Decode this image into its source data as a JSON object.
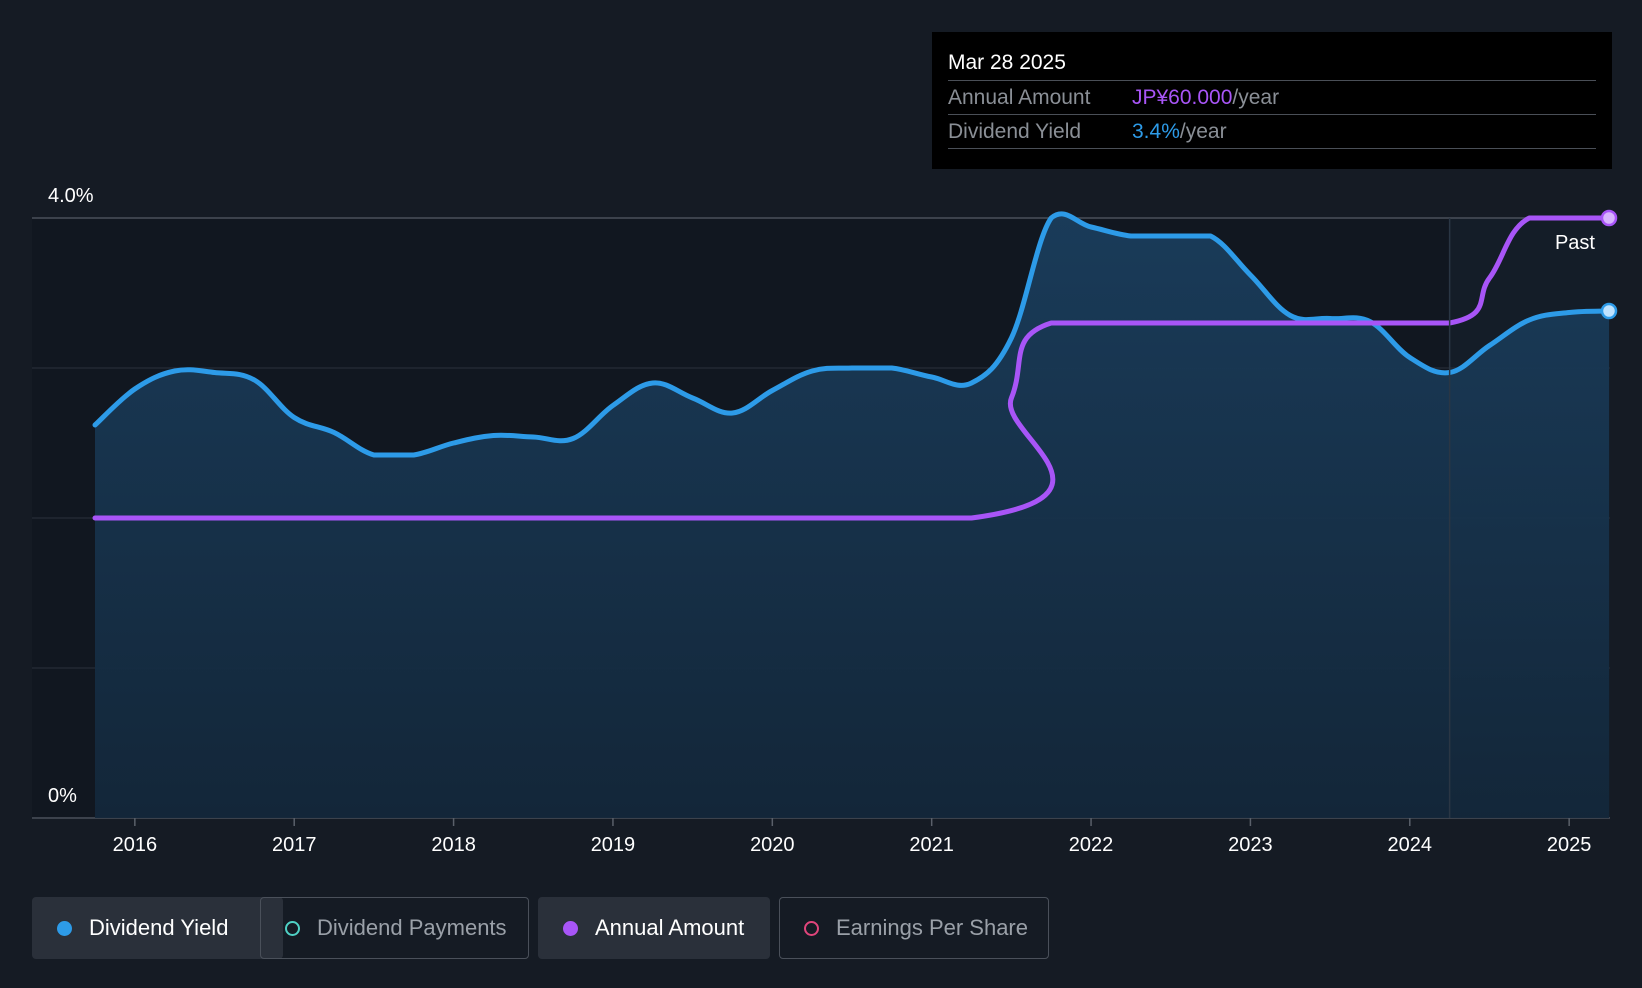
{
  "tooltip": {
    "date": "Mar 28 2025",
    "rows": [
      {
        "label": "Annual Amount",
        "value": "JP¥60.000",
        "unit": "/year",
        "color": "#a855f7"
      },
      {
        "label": "Dividend Yield",
        "value": "3.4%",
        "unit": "/year",
        "color": "#2d9be8"
      }
    ]
  },
  "legend": [
    {
      "label": "Dividend Yield",
      "active": true,
      "color": "#2d9be8",
      "filled": true
    },
    {
      "label": "Dividend Payments",
      "active": false,
      "color": "#4fd1c5",
      "filled": false
    },
    {
      "label": "Annual Amount",
      "active": true,
      "color": "#a855f7",
      "filled": true
    },
    {
      "label": "Earnings Per Share",
      "active": false,
      "color": "#e0457b",
      "filled": false
    }
  ],
  "chart_data": {
    "type": "line",
    "y_axis_labels": [
      "4.0%",
      "0%"
    ],
    "ylim": [
      0,
      4.0
    ],
    "x_ticks": [
      "2016",
      "2017",
      "2018",
      "2019",
      "2020",
      "2021",
      "2022",
      "2023",
      "2024",
      "2025"
    ],
    "xlim": [
      2015.75,
      2025.25
    ],
    "forecast_start": 2024.25,
    "region_label": "Past",
    "grid": true,
    "series": [
      {
        "name": "Dividend Yield",
        "unit": "%",
        "color": "#2d9be8",
        "area": true,
        "points": [
          [
            2015.75,
            2.62
          ],
          [
            2016.0,
            2.86
          ],
          [
            2016.25,
            2.98
          ],
          [
            2016.5,
            2.97
          ],
          [
            2016.75,
            2.92
          ],
          [
            2017.0,
            2.67
          ],
          [
            2017.25,
            2.57
          ],
          [
            2017.5,
            2.42
          ],
          [
            2017.75,
            2.42
          ],
          [
            2018.0,
            2.5
          ],
          [
            2018.25,
            2.55
          ],
          [
            2018.5,
            2.54
          ],
          [
            2018.75,
            2.53
          ],
          [
            2019.0,
            2.75
          ],
          [
            2019.25,
            2.9
          ],
          [
            2019.5,
            2.8
          ],
          [
            2019.75,
            2.7
          ],
          [
            2020.0,
            2.85
          ],
          [
            2020.25,
            2.98
          ],
          [
            2020.5,
            3.0
          ],
          [
            2020.75,
            3.0
          ],
          [
            2021.0,
            2.94
          ],
          [
            2021.25,
            2.9
          ],
          [
            2021.5,
            3.2
          ],
          [
            2021.75,
            4.0
          ],
          [
            2022.0,
            3.94
          ],
          [
            2022.25,
            3.88
          ],
          [
            2022.5,
            3.88
          ],
          [
            2022.75,
            3.88
          ],
          [
            2023.0,
            3.62
          ],
          [
            2023.25,
            3.35
          ],
          [
            2023.5,
            3.33
          ],
          [
            2023.75,
            3.31
          ],
          [
            2024.0,
            3.07
          ],
          [
            2024.25,
            2.97
          ],
          [
            2024.5,
            3.15
          ],
          [
            2024.75,
            3.32
          ],
          [
            2025.0,
            3.37
          ],
          [
            2025.25,
            3.38
          ]
        ]
      },
      {
        "name": "Annual Amount",
        "unit": "JP¥",
        "color": "#a855f7",
        "note_scale": "plotted on its own axis; 60.000 at top gridline",
        "points": [
          [
            2015.75,
            40
          ],
          [
            2021.25,
            40
          ],
          [
            2021.5,
            48
          ],
          [
            2021.75,
            53
          ],
          [
            2023.0,
            53
          ],
          [
            2024.25,
            53
          ],
          [
            2024.5,
            56
          ],
          [
            2024.75,
            60
          ],
          [
            2025.25,
            60
          ]
        ]
      }
    ]
  }
}
